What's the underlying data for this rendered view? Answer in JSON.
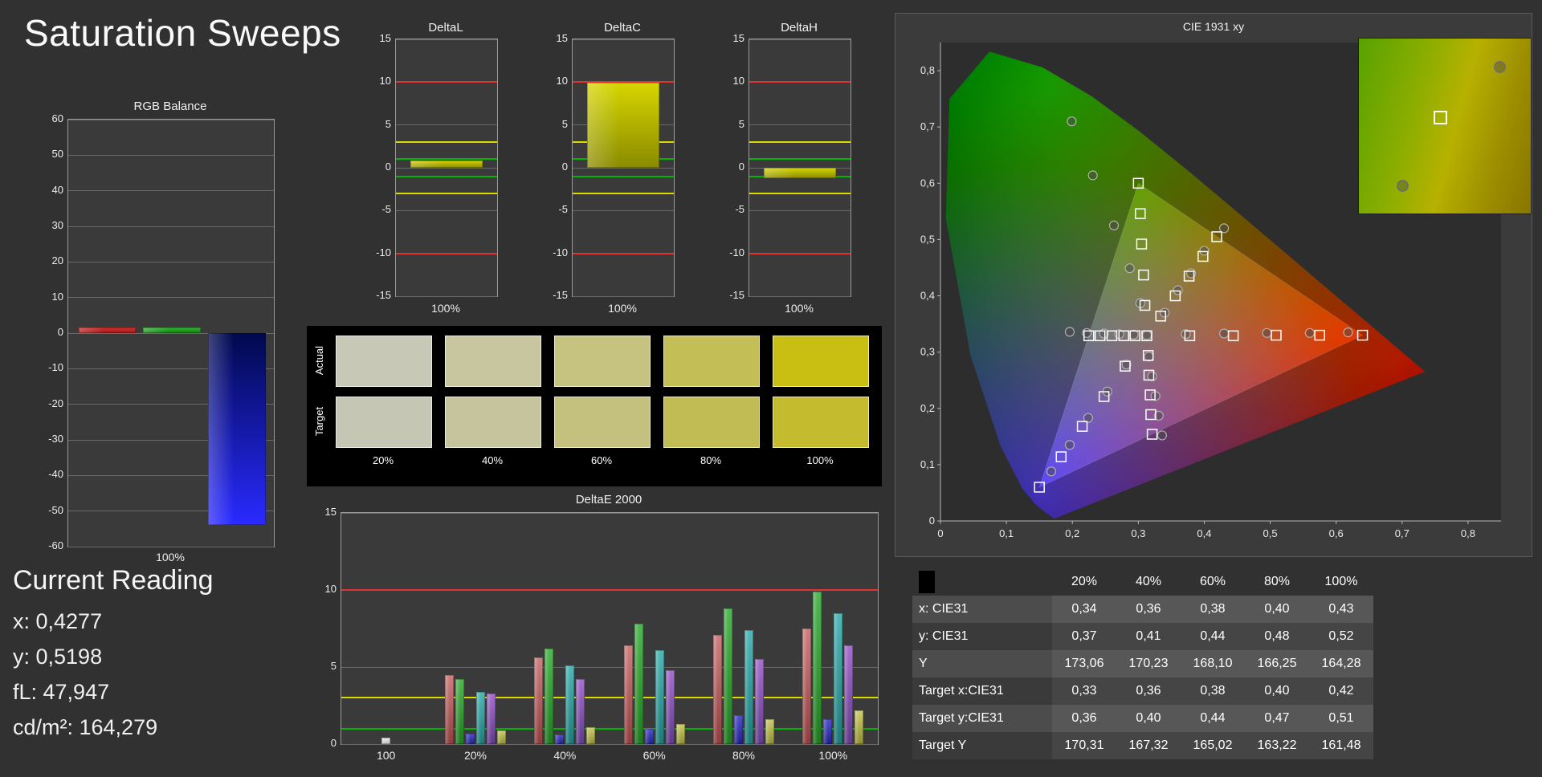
{
  "page": {
    "title": "Saturation Sweeps"
  },
  "current_reading": {
    "heading": "Current Reading",
    "lines": [
      "x: 0,4277",
      "y: 0,5198",
      "fL: 47,947",
      "cd/m²: 164,279"
    ]
  },
  "swatches": {
    "row_labels": [
      "Actual",
      "Target"
    ],
    "col_labels": [
      "20%",
      "40%",
      "60%",
      "80%",
      "100%"
    ],
    "actual_colors": [
      "#c8c8b6",
      "#c8c69e",
      "#c6c280",
      "#c4be56",
      "#c8bf12"
    ],
    "target_colors": [
      "#c6c6b4",
      "#c6c49c",
      "#c4c07e",
      "#c2bc54",
      "#c4bb2e"
    ]
  },
  "table": {
    "header": [
      "20%",
      "40%",
      "60%",
      "80%",
      "100%"
    ],
    "rows": [
      {
        "label": "x: CIE31",
        "values": [
          "0,34",
          "0,36",
          "0,38",
          "0,40",
          "0,43"
        ]
      },
      {
        "label": "y: CIE31",
        "values": [
          "0,37",
          "0,41",
          "0,44",
          "0,48",
          "0,52"
        ]
      },
      {
        "label": "Y",
        "values": [
          "173,06",
          "170,23",
          "168,10",
          "166,25",
          "164,28"
        ]
      },
      {
        "label": "Target x:CIE31",
        "values": [
          "0,33",
          "0,36",
          "0,38",
          "0,40",
          "0,42"
        ]
      },
      {
        "label": "Target y:CIE31",
        "values": [
          "0,36",
          "0,40",
          "0,44",
          "0,47",
          "0,51"
        ]
      },
      {
        "label": "Target Y",
        "values": [
          "170,31",
          "167,32",
          "165,02",
          "163,22",
          "161,48"
        ]
      }
    ]
  },
  "chart_data": [
    {
      "id": "rgb_balance",
      "type": "bar",
      "title": "RGB Balance",
      "xlabel": "100%",
      "ylim": [
        -60,
        60
      ],
      "ytick_step": 10,
      "series": [
        {
          "name": "Red",
          "value": 1.5,
          "color": [
            "#e03030",
            "#9c1515"
          ]
        },
        {
          "name": "Green",
          "value": 1.5,
          "color": [
            "#2fbf2f",
            "#127a12"
          ]
        },
        {
          "name": "Blue",
          "value": -54,
          "color": [
            "#00094e",
            "#2a2aff"
          ]
        }
      ]
    },
    {
      "id": "deltaL",
      "type": "bar",
      "title": "DeltaL",
      "xlabel": "100%",
      "ylim": [
        -15,
        15
      ],
      "ytick_step": 5,
      "value": 0.8,
      "bar_color": [
        "#d6d600",
        "#8a8a00"
      ],
      "limits": [
        {
          "value": 10,
          "color": "#e03232"
        },
        {
          "value": -10,
          "color": "#e03232"
        },
        {
          "value": 3,
          "color": "#dada00"
        },
        {
          "value": -3,
          "color": "#dada00"
        },
        {
          "value": 1,
          "color": "#00b400"
        },
        {
          "value": -1,
          "color": "#00b400"
        }
      ]
    },
    {
      "id": "deltaC",
      "type": "bar",
      "title": "DeltaC",
      "xlabel": "100%",
      "ylim": [
        -15,
        15
      ],
      "ytick_step": 5,
      "value": 9.9,
      "bar_color": [
        "#d6d600",
        "#8a8a00"
      ],
      "limits": [
        {
          "value": 10,
          "color": "#e03232"
        },
        {
          "value": -10,
          "color": "#e03232"
        },
        {
          "value": 3,
          "color": "#dada00"
        },
        {
          "value": -3,
          "color": "#dada00"
        },
        {
          "value": 1,
          "color": "#00b400"
        },
        {
          "value": -1,
          "color": "#00b400"
        }
      ]
    },
    {
      "id": "deltaH",
      "type": "bar",
      "title": "DeltaH",
      "xlabel": "100%",
      "ylim": [
        -15,
        15
      ],
      "ytick_step": 5,
      "value": -1.2,
      "bar_color": [
        "#d6d600",
        "#8a8a00"
      ],
      "limits": [
        {
          "value": 10,
          "color": "#e03232"
        },
        {
          "value": -10,
          "color": "#e03232"
        },
        {
          "value": 3,
          "color": "#dada00"
        },
        {
          "value": -3,
          "color": "#dada00"
        },
        {
          "value": 1,
          "color": "#00b400"
        },
        {
          "value": -1,
          "color": "#00b400"
        }
      ]
    },
    {
      "id": "deltaE2000",
      "type": "grouped_bar",
      "title": "DeltaE 2000",
      "ylim": [
        0,
        15
      ],
      "yticks": [
        0,
        5,
        10,
        15
      ],
      "limits": [
        {
          "value": 10,
          "color": "#e03232"
        },
        {
          "value": 3,
          "color": "#dada00"
        },
        {
          "value": 1,
          "color": "#00b400"
        }
      ],
      "palette": {
        "white": [
          "#f0f0f0",
          "#bcbcbc"
        ],
        "red": [
          "#d08080",
          "#8f3d3d"
        ],
        "green": [
          "#52b852",
          "#1e7a1e"
        ],
        "blue": [
          "#5252d0",
          "#1f1f8a"
        ],
        "cyan": [
          "#52b8b8",
          "#1e7a7a"
        ],
        "magenta": [
          "#a870d0",
          "#5f3a8a"
        ],
        "yellow": [
          "#cece6e",
          "#8f8f32"
        ]
      },
      "groups": [
        {
          "label": "100",
          "colors": [
            "white"
          ],
          "values": [
            0.4
          ]
        },
        {
          "label": "20%",
          "colors": [
            "red",
            "green",
            "blue",
            "cyan",
            "magenta",
            "yellow"
          ],
          "values": [
            4.5,
            4.2,
            0.7,
            3.4,
            3.3,
            0.9
          ]
        },
        {
          "label": "40%",
          "colors": [
            "red",
            "green",
            "blue",
            "cyan",
            "magenta",
            "yellow"
          ],
          "values": [
            5.6,
            6.2,
            0.6,
            5.1,
            4.2,
            1.1
          ]
        },
        {
          "label": "60%",
          "colors": [
            "red",
            "green",
            "blue",
            "cyan",
            "magenta",
            "yellow"
          ],
          "values": [
            6.4,
            7.8,
            1.0,
            6.1,
            4.8,
            1.3
          ]
        },
        {
          "label": "80%",
          "colors": [
            "red",
            "green",
            "blue",
            "cyan",
            "magenta",
            "yellow"
          ],
          "values": [
            7.1,
            8.8,
            1.9,
            7.4,
            5.5,
            1.6
          ]
        },
        {
          "label": "100%",
          "colors": [
            "red",
            "green",
            "blue",
            "cyan",
            "magenta",
            "yellow"
          ],
          "values": [
            7.5,
            9.9,
            1.6,
            8.5,
            6.4,
            2.2
          ]
        }
      ]
    },
    {
      "id": "cie",
      "type": "scatter",
      "title": "CIE 1931 xy",
      "xlim": [
        0,
        0.85
      ],
      "ylim": [
        0,
        0.85
      ],
      "tick_labels": [
        "0",
        "0,1",
        "0,2",
        "0,3",
        "0,4",
        "0,5",
        "0,6",
        "0,7",
        "0,8"
      ],
      "white_point": [
        0.313,
        0.329
      ],
      "srgb_triangle": [
        [
          0.64,
          0.33
        ],
        [
          0.3,
          0.6
        ],
        [
          0.15,
          0.06
        ]
      ],
      "targets": [
        [
          0.313,
          0.329
        ],
        [
          0.378,
          0.329
        ],
        [
          0.444,
          0.329
        ],
        [
          0.509,
          0.33
        ],
        [
          0.575,
          0.33
        ],
        [
          0.64,
          0.33
        ],
        [
          0.31,
          0.383
        ],
        [
          0.308,
          0.437
        ],
        [
          0.305,
          0.492
        ],
        [
          0.303,
          0.546
        ],
        [
          0.3,
          0.6
        ],
        [
          0.28,
          0.275
        ],
        [
          0.248,
          0.221
        ],
        [
          0.215,
          0.168
        ],
        [
          0.183,
          0.114
        ],
        [
          0.15,
          0.06
        ],
        [
          0.295,
          0.329
        ],
        [
          0.278,
          0.329
        ],
        [
          0.26,
          0.329
        ],
        [
          0.242,
          0.329
        ],
        [
          0.225,
          0.329
        ],
        [
          0.315,
          0.294
        ],
        [
          0.316,
          0.259
        ],
        [
          0.318,
          0.224
        ],
        [
          0.319,
          0.189
        ],
        [
          0.321,
          0.154
        ],
        [
          0.334,
          0.364
        ],
        [
          0.356,
          0.4
        ],
        [
          0.377,
          0.435
        ],
        [
          0.398,
          0.47
        ],
        [
          0.419,
          0.505
        ]
      ],
      "measurements": [
        [
          0.313,
          0.33
        ],
        [
          0.372,
          0.332
        ],
        [
          0.43,
          0.333
        ],
        [
          0.495,
          0.334
        ],
        [
          0.56,
          0.334
        ],
        [
          0.618,
          0.335
        ],
        [
          0.303,
          0.387
        ],
        [
          0.287,
          0.449
        ],
        [
          0.263,
          0.525
        ],
        [
          0.231,
          0.614
        ],
        [
          0.199,
          0.71
        ],
        [
          0.282,
          0.278
        ],
        [
          0.253,
          0.23
        ],
        [
          0.224,
          0.183
        ],
        [
          0.196,
          0.135
        ],
        [
          0.168,
          0.088
        ],
        [
          0.293,
          0.331
        ],
        [
          0.271,
          0.332
        ],
        [
          0.248,
          0.333
        ],
        [
          0.222,
          0.334
        ],
        [
          0.196,
          0.336
        ],
        [
          0.316,
          0.292
        ],
        [
          0.321,
          0.257
        ],
        [
          0.326,
          0.222
        ],
        [
          0.331,
          0.187
        ],
        [
          0.336,
          0.152
        ],
        [
          0.34,
          0.37
        ],
        [
          0.36,
          0.41
        ],
        [
          0.38,
          0.44
        ],
        [
          0.4,
          0.48
        ],
        [
          0.43,
          0.52
        ]
      ],
      "inset": {
        "square": [
          0.47,
          0.45
        ],
        "circles": [
          [
            0.82,
            0.16
          ],
          [
            0.25,
            0.84
          ]
        ]
      }
    }
  ]
}
